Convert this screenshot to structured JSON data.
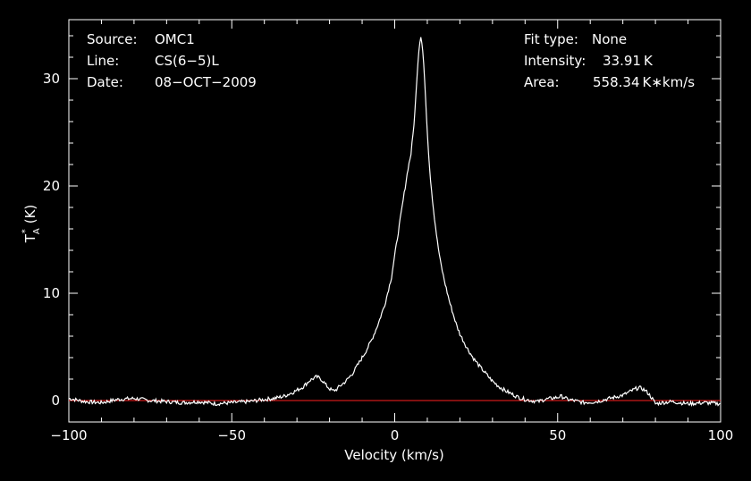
{
  "chart_data": {
    "type": "line",
    "title": "",
    "xlabel": "Velocity (km/s)",
    "ylabel_main": "T",
    "ylabel_sub": "A",
    "ylabel_sup": "*",
    "ylabel_unit": "(K)",
    "xlim": [
      -100,
      100
    ],
    "ylim": [
      -2,
      35.5
    ],
    "xticks": [
      -100,
      -50,
      0,
      50,
      100
    ],
    "xtick_labels": [
      "−100",
      "−50",
      "0",
      "50",
      "100"
    ],
    "yticks": [
      0,
      10,
      20,
      30
    ],
    "ytick_labels": [
      "0",
      "10",
      "20",
      "30"
    ],
    "baseline": 0,
    "colors": {
      "background": "#000000",
      "spectrum": "#ffffff",
      "baseline": "#ff2020",
      "axes": "#ffffff"
    },
    "series": [
      {
        "x": [
          -100,
          -95,
          -90,
          -85,
          -80,
          -75,
          -70,
          -65,
          -60,
          -55,
          -50,
          -45,
          -40,
          -37,
          -34,
          -31,
          -28,
          -26,
          -24,
          -23,
          -22,
          -21,
          -20,
          -19,
          -18,
          -17,
          -15,
          -13,
          -11,
          -9,
          -7,
          -5,
          -3,
          -1,
          0,
          1,
          2,
          3,
          4,
          5,
          6,
          7,
          7.5,
          8,
          8.5,
          9,
          9.5,
          10,
          10.5,
          11,
          12,
          13,
          14,
          15,
          16,
          17,
          18,
          19,
          20,
          22,
          24,
          26,
          28,
          30,
          32,
          34,
          36,
          38,
          40,
          42,
          44,
          46,
          48,
          50,
          51,
          52,
          53,
          55,
          58,
          62,
          66,
          70,
          72,
          74,
          75,
          76,
          77,
          78,
          79,
          80,
          82,
          85,
          90,
          95,
          100
        ],
        "y": [
          0.2,
          -0.1,
          -0.2,
          0.1,
          0.2,
          0.0,
          -0.1,
          -0.2,
          -0.1,
          -0.3,
          -0.2,
          -0.1,
          0.1,
          0.2,
          0.4,
          0.8,
          1.3,
          1.9,
          2.2,
          2.1,
          1.8,
          1.4,
          1.1,
          0.9,
          1.0,
          1.3,
          1.8,
          2.5,
          3.5,
          4.5,
          5.7,
          7.2,
          9.0,
          11.5,
          13.5,
          15.5,
          17.5,
          19.5,
          21.5,
          23.0,
          26.0,
          31.0,
          33.0,
          33.91,
          33.0,
          31.0,
          28.0,
          25.0,
          22.5,
          20.5,
          17.5,
          15.0,
          13.0,
          11.5,
          10.2,
          9.0,
          8.0,
          7.0,
          6.2,
          5.0,
          4.0,
          3.2,
          2.5,
          1.8,
          1.3,
          0.9,
          0.6,
          0.3,
          0.1,
          0.0,
          -0.1,
          0.1,
          0.2,
          0.3,
          0.4,
          0.3,
          0.1,
          0.0,
          -0.2,
          -0.1,
          0.2,
          0.5,
          0.8,
          1.1,
          1.2,
          1.1,
          0.9,
          0.6,
          0.2,
          -0.3,
          -0.2,
          -0.1,
          -0.3,
          -0.2,
          -0.3
        ]
      }
    ]
  },
  "info_left": {
    "source_label": "Source:",
    "source_value": "OMC1",
    "line_label": "Line:",
    "line_value": "CS(6−5)L",
    "date_label": "Date:",
    "date_value": "08−OCT−2009"
  },
  "info_right": {
    "fit_label": "Fit type:",
    "fit_value": "None",
    "intensity_label": "Intensity:",
    "intensity_value": "33.91 K",
    "area_label": "Area:",
    "area_value": "558.34 K∗km/s"
  }
}
